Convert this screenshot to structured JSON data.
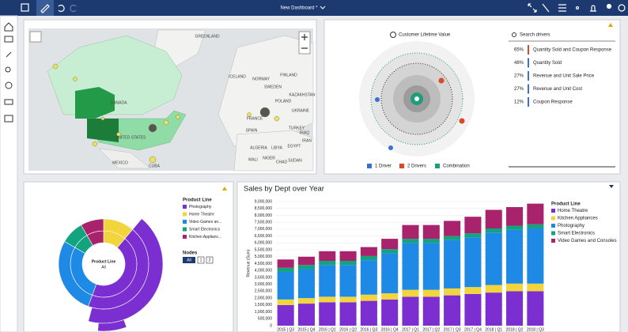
{
  "header": {
    "title": "New Dashboard *"
  },
  "map": {
    "labels": [
      "GREENLAND",
      "ICELAND",
      "CANADA",
      "UNITED STATES",
      "MEXICO",
      "CUBA",
      "NORWAY",
      "SWEDEN",
      "FINLAND",
      "POLAND",
      "UKRAINE",
      "FRANCE",
      "SPAIN",
      "TURKEY",
      "ALGERIA",
      "LIBYA",
      "EGYPT",
      "MALI",
      "NIGER",
      "CHAD",
      "SUDAN",
      "KAZAKHSTAN",
      "IRAN",
      "IRAQ"
    ]
  },
  "drivers": {
    "title": "Customer Lifetime Value",
    "search": "Search drivers",
    "items": [
      {
        "pct": "65%",
        "label": "Quantity Sold and Coupon Response"
      },
      {
        "pct": "48%",
        "label": "Quantity Sold"
      },
      {
        "pct": "27%",
        "label": "Revenue and Unit Sale Price"
      },
      {
        "pct": "27%",
        "label": "Revenue and Unit Cost"
      },
      {
        "pct": "12%",
        "label": "Coupon Response"
      }
    ],
    "legend": [
      "1 Driver",
      "2 Drivers",
      "Combination"
    ]
  },
  "sunburst": {
    "legend_title": "Product Line",
    "legend": [
      "Photography",
      "Home Theatre",
      "Video Games an...",
      "Smart Electronics",
      "Kitchen Applianc..."
    ],
    "center": [
      "Product Line",
      "All"
    ],
    "nodes_title": "Nodes",
    "nodes": [
      "All",
      "1",
      "2"
    ]
  },
  "chart_data": {
    "type": "stacked_bar",
    "title": "Sales by Dept over Year",
    "y_label": "Revenue (Sum)",
    "legend_title": "Product Line",
    "categories": [
      "2015 | Q3",
      "2015 | Q4",
      "2016 | Q1",
      "2016 | Q2",
      "2016 | Q3",
      "2016 | Q4",
      "2017 | Q1",
      "2017 | Q2",
      "2017 | Q3",
      "2017 | Q4",
      "2018 | Q1",
      "2018 | Q2",
      "2018 | Q3"
    ],
    "series": [
      {
        "name": "Home Theatre",
        "color": "#7b2fd0",
        "values": [
          1500000,
          1600000,
          1700000,
          1700000,
          1800000,
          1900000,
          2100000,
          2100000,
          2200000,
          2300000,
          2400000,
          2500000,
          2500000
        ]
      },
      {
        "name": "Kitchen Appliances",
        "color": "#f2d43c",
        "values": [
          400000,
          400000,
          400000,
          400000,
          450000,
          450000,
          500000,
          500000,
          500000,
          500000,
          550000,
          550000,
          550000
        ]
      },
      {
        "name": "Photography",
        "color": "#1f8ae6",
        "values": [
          2000000,
          2100000,
          2300000,
          2300000,
          2500000,
          2900000,
          3400000,
          3400000,
          3500000,
          3600000,
          3800000,
          3900000,
          4000000
        ]
      },
      {
        "name": "Smart Electronics",
        "color": "#14a37f",
        "values": [
          300000,
          300000,
          300000,
          300000,
          300000,
          300000,
          300000,
          300000,
          300000,
          300000,
          300000,
          300000,
          300000
        ]
      },
      {
        "name": "Video Games and Consoles",
        "color": "#a8226c",
        "values": [
          600000,
          600000,
          700000,
          700000,
          650000,
          750000,
          1000000,
          1000000,
          1100000,
          1200000,
          1350000,
          1350000,
          1500000
        ]
      }
    ],
    "ylim": [
      0,
      9000000
    ],
    "yticks": [
      0,
      {
        "value": 500000,
        "label": "500,000"
      },
      {
        "value": 1000000,
        "label": "1,000,000"
      },
      {
        "value": 1500000,
        "label": "1,500,000"
      },
      {
        "value": 2000000,
        "label": "2,000,000"
      },
      {
        "value": 2500000,
        "label": "2,500,000"
      },
      {
        "value": 3000000,
        "label": "3,000,000"
      },
      {
        "value": 3500000,
        "label": "3,500,000"
      },
      {
        "value": 4000000,
        "label": "4,000,000"
      },
      {
        "value": 4500000,
        "label": "4,500,000"
      },
      {
        "value": 5000000,
        "label": "5,000,000"
      },
      {
        "value": 5500000,
        "label": "5,500,000"
      },
      {
        "value": 6000000,
        "label": "6,000,000"
      },
      {
        "value": 6500000,
        "label": "6,500,000"
      },
      {
        "value": 7000000,
        "label": "7,000,000"
      },
      {
        "value": 7500000,
        "label": "7,500,000"
      },
      {
        "value": 8000000,
        "label": "8,000,000"
      },
      {
        "value": 8500000,
        "label": "8,500,000"
      },
      {
        "value": 9000000,
        "label": "9,000,000"
      }
    ],
    "grid": true
  }
}
